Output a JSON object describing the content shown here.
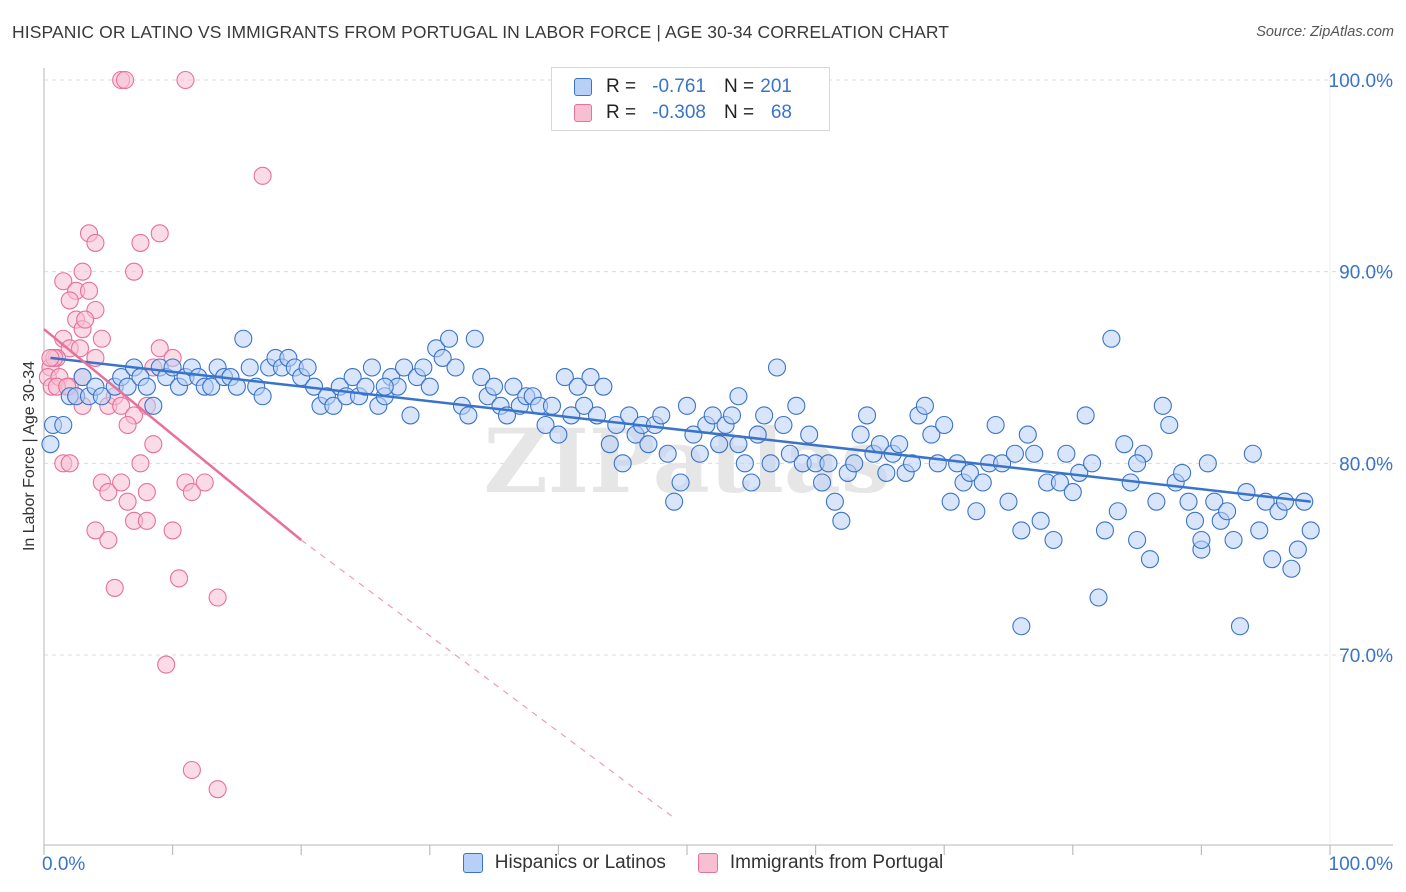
{
  "title": "HISPANIC OR LATINO VS IMMIGRANTS FROM PORTUGAL IN LABOR FORCE | AGE 30-34 CORRELATION CHART",
  "source": "Source: ZipAtlas.com",
  "watermark": "ZIPatlas",
  "colors": {
    "blue": "#3a74c9",
    "blue_fill": "#b8d0f5",
    "pink": "#e8709a",
    "pink_fill": "#f7bfd2",
    "grid": "#dcdcdc"
  },
  "legend": {
    "rows": [
      {
        "r_label": "R =",
        "r_value": "-0.761",
        "n_label": "N =",
        "n_value": "201"
      },
      {
        "r_label": "R =",
        "r_value": "-0.308",
        "n_label": "N =",
        "n_value": "68"
      }
    ]
  },
  "bottom_legend": {
    "items": [
      "Hispanics or Latinos",
      "Immigrants from Portugal"
    ]
  },
  "chart_data": {
    "type": "scatter",
    "xlabel": "",
    "ylabel": "In Labor Force | Age 30-34",
    "xlim": [
      0,
      100
    ],
    "ylim": [
      61.5,
      102
    ],
    "x_tick_labels": [
      "0.0%",
      "100.0%"
    ],
    "y_ticks": [
      70,
      80,
      90,
      100
    ],
    "y_tick_labels": [
      "70.0%",
      "80.0%",
      "90.0%",
      "100.0%"
    ],
    "grid": true,
    "legend_position": "top-center",
    "series": [
      {
        "name": "Hispanics or Latinos",
        "color": "#3a74c9",
        "trend": {
          "x0": 0.5,
          "y0": 85.5,
          "x1": 98.5,
          "y1": 78.0
        },
        "points": [
          [
            0.5,
            81.0
          ],
          [
            0.7,
            82.0
          ],
          [
            1.5,
            82.0
          ],
          [
            2.0,
            83.5
          ],
          [
            2.5,
            83.5
          ],
          [
            3.0,
            84.5
          ],
          [
            3.5,
            83.5
          ],
          [
            4.0,
            84.0
          ],
          [
            4.5,
            83.5
          ],
          [
            5.5,
            84.0
          ],
          [
            6.0,
            84.5
          ],
          [
            6.5,
            84.0
          ],
          [
            7.0,
            85.0
          ],
          [
            7.5,
            84.5
          ],
          [
            8.0,
            84.0
          ],
          [
            8.5,
            83.0
          ],
          [
            9.0,
            85.0
          ],
          [
            9.5,
            84.5
          ],
          [
            10.0,
            85.0
          ],
          [
            10.5,
            84.0
          ],
          [
            11.0,
            84.5
          ],
          [
            11.5,
            85.0
          ],
          [
            12.0,
            84.5
          ],
          [
            12.5,
            84.0
          ],
          [
            13.0,
            84.0
          ],
          [
            13.5,
            85.0
          ],
          [
            14.0,
            84.5
          ],
          [
            14.5,
            84.5
          ],
          [
            15.0,
            84.0
          ],
          [
            15.5,
            86.5
          ],
          [
            16.0,
            85.0
          ],
          [
            16.5,
            84.0
          ],
          [
            17.0,
            83.5
          ],
          [
            17.5,
            85.0
          ],
          [
            18.0,
            85.5
          ],
          [
            18.5,
            85.0
          ],
          [
            19.0,
            85.5
          ],
          [
            19.5,
            85.0
          ],
          [
            20.0,
            84.5
          ],
          [
            20.5,
            85.0
          ],
          [
            21.0,
            84.0
          ],
          [
            21.5,
            83.0
          ],
          [
            22.0,
            83.5
          ],
          [
            22.5,
            83.0
          ],
          [
            23.0,
            84.0
          ],
          [
            23.5,
            83.5
          ],
          [
            24.0,
            84.5
          ],
          [
            24.5,
            83.5
          ],
          [
            25.0,
            84.0
          ],
          [
            25.5,
            85.0
          ],
          [
            26.0,
            83.0
          ],
          [
            26.5,
            83.5
          ],
          [
            27.0,
            84.5
          ],
          [
            27.5,
            84.0
          ],
          [
            28.0,
            85.0
          ],
          [
            28.5,
            82.5
          ],
          [
            29.0,
            84.5
          ],
          [
            29.5,
            85.0
          ],
          [
            30.0,
            84.0
          ],
          [
            30.5,
            86.0
          ],
          [
            31.0,
            85.5
          ],
          [
            31.5,
            86.5
          ],
          [
            32.0,
            85.0
          ],
          [
            32.5,
            83.0
          ],
          [
            33.0,
            82.5
          ],
          [
            33.5,
            86.5
          ],
          [
            34.0,
            84.5
          ],
          [
            34.5,
            83.5
          ],
          [
            35.0,
            84.0
          ],
          [
            35.5,
            83.0
          ],
          [
            36.0,
            82.5
          ],
          [
            36.5,
            84.0
          ],
          [
            37.0,
            83.0
          ],
          [
            37.5,
            83.5
          ],
          [
            38.0,
            83.5
          ],
          [
            38.5,
            83.0
          ],
          [
            39.0,
            82.0
          ],
          [
            39.5,
            83.0
          ],
          [
            40.0,
            81.5
          ],
          [
            40.5,
            84.5
          ],
          [
            41.0,
            82.5
          ],
          [
            41.5,
            84.0
          ],
          [
            42.0,
            83.0
          ],
          [
            42.5,
            84.5
          ],
          [
            43.0,
            82.5
          ],
          [
            43.5,
            84.0
          ],
          [
            44.0,
            81.0
          ],
          [
            44.5,
            82.0
          ],
          [
            45.0,
            80.0
          ],
          [
            45.5,
            82.5
          ],
          [
            46.0,
            81.5
          ],
          [
            46.5,
            82.0
          ],
          [
            47.0,
            81.0
          ],
          [
            47.5,
            82.0
          ],
          [
            48.0,
            82.5
          ],
          [
            48.5,
            80.5
          ],
          [
            49.0,
            78.0
          ],
          [
            49.5,
            79.0
          ],
          [
            50.0,
            83.0
          ],
          [
            50.5,
            81.5
          ],
          [
            51.0,
            80.5
          ],
          [
            51.5,
            82.0
          ],
          [
            52.0,
            82.5
          ],
          [
            52.5,
            81.0
          ],
          [
            53.0,
            82.0
          ],
          [
            53.5,
            82.5
          ],
          [
            54.0,
            83.5
          ],
          [
            54.5,
            80.0
          ],
          [
            55.0,
            79.0
          ],
          [
            55.5,
            81.5
          ],
          [
            56.0,
            82.5
          ],
          [
            56.5,
            80.0
          ],
          [
            57.0,
            85.0
          ],
          [
            57.5,
            82.0
          ],
          [
            58.0,
            80.5
          ],
          [
            58.5,
            83.0
          ],
          [
            59.0,
            80.0
          ],
          [
            59.5,
            81.5
          ],
          [
            60.0,
            80.0
          ],
          [
            60.5,
            79.0
          ],
          [
            61.0,
            80.0
          ],
          [
            61.5,
            78.0
          ],
          [
            62.0,
            77.0
          ],
          [
            62.5,
            79.5
          ],
          [
            63.0,
            80.0
          ],
          [
            63.5,
            81.5
          ],
          [
            64.0,
            82.5
          ],
          [
            64.5,
            80.5
          ],
          [
            65.0,
            81.0
          ],
          [
            65.5,
            79.5
          ],
          [
            66.0,
            80.5
          ],
          [
            66.5,
            81.0
          ],
          [
            67.0,
            79.5
          ],
          [
            67.5,
            80.0
          ],
          [
            68.0,
            82.5
          ],
          [
            68.5,
            83.0
          ],
          [
            69.0,
            81.5
          ],
          [
            69.5,
            80.0
          ],
          [
            70.0,
            82.0
          ],
          [
            70.5,
            78.0
          ],
          [
            71.0,
            80.0
          ],
          [
            71.5,
            79.0
          ],
          [
            72.0,
            79.5
          ],
          [
            72.5,
            77.5
          ],
          [
            73.0,
            79.0
          ],
          [
            73.5,
            80.0
          ],
          [
            74.0,
            82.0
          ],
          [
            74.5,
            80.0
          ],
          [
            75.0,
            78.0
          ],
          [
            75.5,
            80.5
          ],
          [
            76.0,
            76.5
          ],
          [
            76.5,
            81.5
          ],
          [
            77.0,
            80.5
          ],
          [
            77.5,
            77.0
          ],
          [
            78.0,
            79.0
          ],
          [
            78.5,
            76.0
          ],
          [
            79.0,
            79.0
          ],
          [
            79.5,
            80.5
          ],
          [
            80.0,
            78.5
          ],
          [
            80.5,
            79.5
          ],
          [
            81.0,
            82.5
          ],
          [
            81.5,
            80.0
          ],
          [
            82.0,
            73.0
          ],
          [
            82.5,
            76.5
          ],
          [
            83.0,
            86.5
          ],
          [
            83.5,
            77.5
          ],
          [
            84.0,
            81.0
          ],
          [
            84.5,
            79.0
          ],
          [
            85.0,
            76.0
          ],
          [
            85.5,
            80.5
          ],
          [
            86.0,
            75.0
          ],
          [
            86.5,
            78.0
          ],
          [
            87.0,
            83.0
          ],
          [
            87.5,
            82.0
          ],
          [
            88.0,
            79.0
          ],
          [
            88.5,
            79.5
          ],
          [
            89.0,
            78.0
          ],
          [
            89.5,
            77.0
          ],
          [
            90.0,
            75.5
          ],
          [
            90.5,
            80.0
          ],
          [
            91.0,
            78.0
          ],
          [
            91.5,
            77.0
          ],
          [
            92.0,
            77.5
          ],
          [
            92.5,
            76.0
          ],
          [
            93.0,
            71.5
          ],
          [
            93.5,
            78.5
          ],
          [
            94.0,
            80.5
          ],
          [
            94.5,
            76.5
          ],
          [
            95.0,
            78.0
          ],
          [
            95.5,
            75.0
          ],
          [
            96.0,
            77.5
          ],
          [
            96.5,
            78.0
          ],
          [
            97.0,
            74.5
          ],
          [
            97.5,
            75.5
          ],
          [
            98.0,
            78.0
          ],
          [
            98.5,
            76.5
          ],
          [
            90.0,
            76.0
          ],
          [
            85.0,
            80.0
          ],
          [
            76.0,
            71.5
          ],
          [
            54.0,
            81.0
          ],
          [
            26.5,
            84.0
          ]
        ]
      },
      {
        "name": "Immigrants from Portugal",
        "color": "#e8709a",
        "trend": {
          "x0": 0.0,
          "y0": 87.0,
          "x1": 20.0,
          "y1": 76.0,
          "dash_x1": 49.0,
          "dash_y1": 61.5
        },
        "points": [
          [
            6.0,
            100.0
          ],
          [
            6.3,
            100.0
          ],
          [
            11.0,
            100.0
          ],
          [
            17.0,
            95.0
          ],
          [
            9.0,
            92.0
          ],
          [
            3.5,
            92.0
          ],
          [
            4.0,
            91.5
          ],
          [
            7.5,
            91.5
          ],
          [
            3.0,
            90.0
          ],
          [
            7.0,
            90.0
          ],
          [
            1.5,
            89.5
          ],
          [
            2.5,
            89.0
          ],
          [
            3.5,
            89.0
          ],
          [
            2.0,
            88.5
          ],
          [
            4.0,
            88.0
          ],
          [
            2.5,
            87.5
          ],
          [
            3.0,
            87.0
          ],
          [
            4.5,
            86.5
          ],
          [
            1.5,
            86.5
          ],
          [
            2.0,
            86.0
          ],
          [
            1.0,
            85.5
          ],
          [
            0.5,
            85.0
          ],
          [
            0.8,
            85.5
          ],
          [
            0.3,
            84.5
          ],
          [
            0.6,
            84.0
          ],
          [
            1.2,
            84.5
          ],
          [
            2.0,
            84.0
          ],
          [
            2.5,
            83.5
          ],
          [
            3.0,
            83.0
          ],
          [
            4.0,
            85.5
          ],
          [
            5.0,
            83.0
          ],
          [
            5.5,
            83.5
          ],
          [
            6.0,
            83.0
          ],
          [
            7.0,
            82.5
          ],
          [
            8.0,
            83.0
          ],
          [
            8.5,
            85.0
          ],
          [
            9.0,
            86.0
          ],
          [
            10.0,
            85.5
          ],
          [
            8.5,
            81.0
          ],
          [
            7.5,
            80.0
          ],
          [
            1.5,
            80.0
          ],
          [
            2.0,
            80.0
          ],
          [
            4.5,
            79.0
          ],
          [
            5.0,
            78.5
          ],
          [
            6.0,
            79.0
          ],
          [
            6.5,
            78.0
          ],
          [
            8.0,
            78.5
          ],
          [
            11.0,
            79.0
          ],
          [
            11.5,
            78.5
          ],
          [
            12.5,
            79.0
          ],
          [
            4.0,
            76.5
          ],
          [
            5.0,
            76.0
          ],
          [
            7.0,
            77.0
          ],
          [
            8.0,
            77.0
          ],
          [
            10.0,
            76.5
          ],
          [
            5.5,
            73.5
          ],
          [
            10.5,
            74.0
          ],
          [
            13.5,
            73.0
          ],
          [
            9.5,
            69.5
          ],
          [
            11.5,
            64.0
          ],
          [
            13.5,
            63.0
          ],
          [
            3.0,
            84.5
          ],
          [
            2.8,
            86.0
          ],
          [
            3.2,
            87.5
          ],
          [
            1.0,
            84.0
          ],
          [
            0.5,
            85.5
          ],
          [
            1.8,
            84.0
          ],
          [
            6.5,
            82.0
          ]
        ]
      }
    ]
  }
}
